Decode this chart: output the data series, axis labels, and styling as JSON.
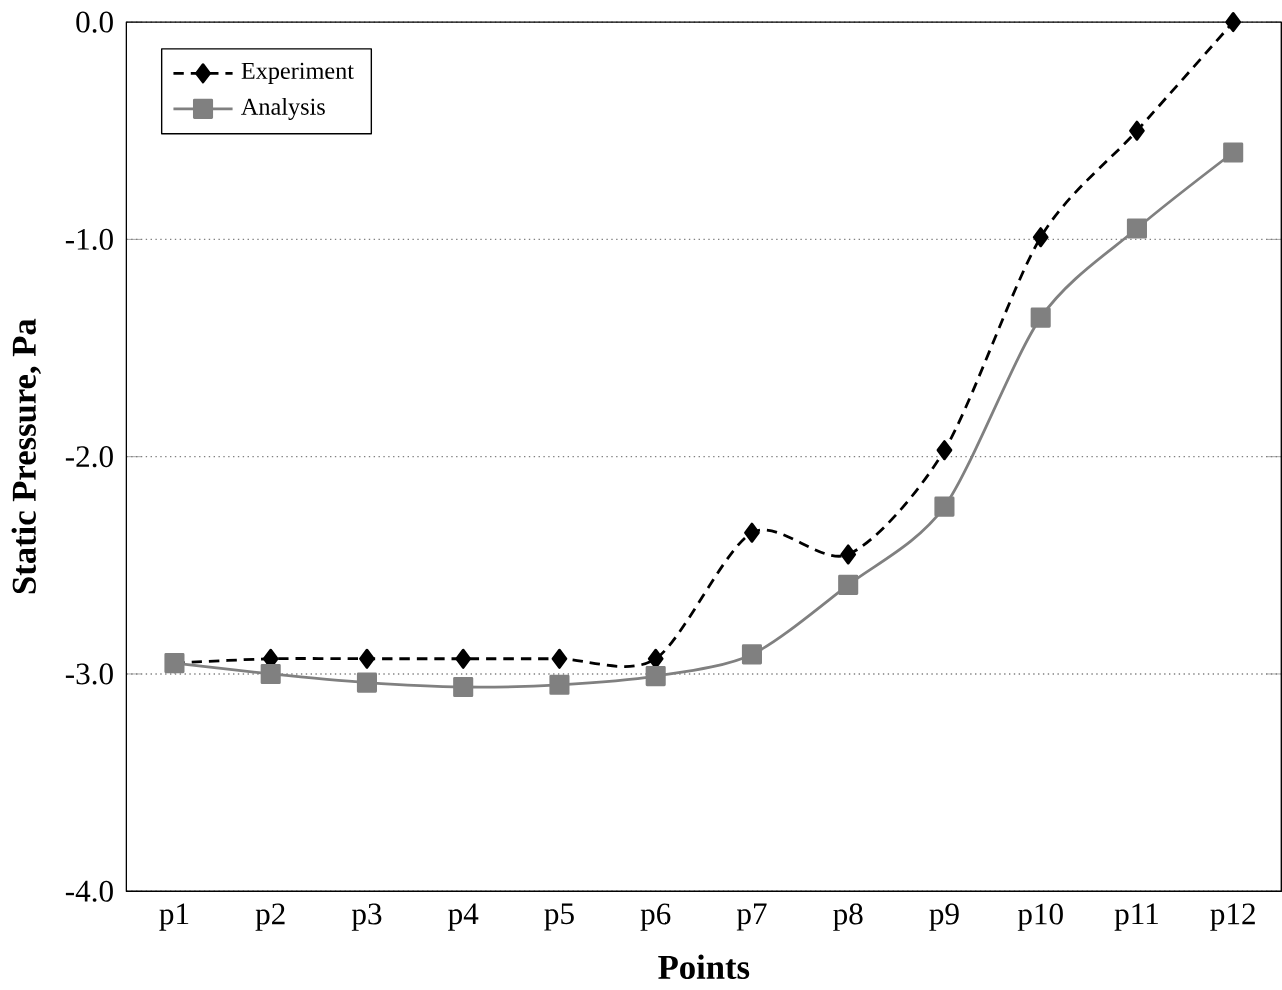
{
  "chart_data": {
    "type": "line",
    "xlabel": "Points",
    "ylabel": "Static Pressure, Pa",
    "categories": [
      "p1",
      "p2",
      "p3",
      "p4",
      "p5",
      "p6",
      "p7",
      "p8",
      "p9",
      "p10",
      "p11",
      "p12"
    ],
    "series": [
      {
        "name": "Experiment",
        "color": "#000000",
        "marker": "diamond",
        "line_style": "dotted",
        "values": [
          -2.95,
          -2.93,
          -2.93,
          -2.93,
          -2.93,
          -2.93,
          -2.35,
          -2.45,
          -1.97,
          -0.99,
          -0.5,
          0.0
        ]
      },
      {
        "name": "Analysis",
        "color": "#808080",
        "marker": "square",
        "line_style": "solid",
        "values": [
          -2.95,
          -3.0,
          -3.04,
          -3.06,
          -3.05,
          -3.01,
          -2.91,
          -2.59,
          -2.23,
          -1.36,
          -0.95,
          -0.6
        ]
      }
    ],
    "ylim": [
      -4,
      0
    ],
    "yticks": [
      {
        "value": -4,
        "label": "-4.0"
      },
      {
        "value": -3,
        "label": "-3.0"
      },
      {
        "value": -2,
        "label": "-2.0"
      },
      {
        "value": -1,
        "label": "-1.0"
      },
      {
        "value": 0,
        "label": "0.0"
      }
    ],
    "grid": "y",
    "legend": "top left"
  }
}
